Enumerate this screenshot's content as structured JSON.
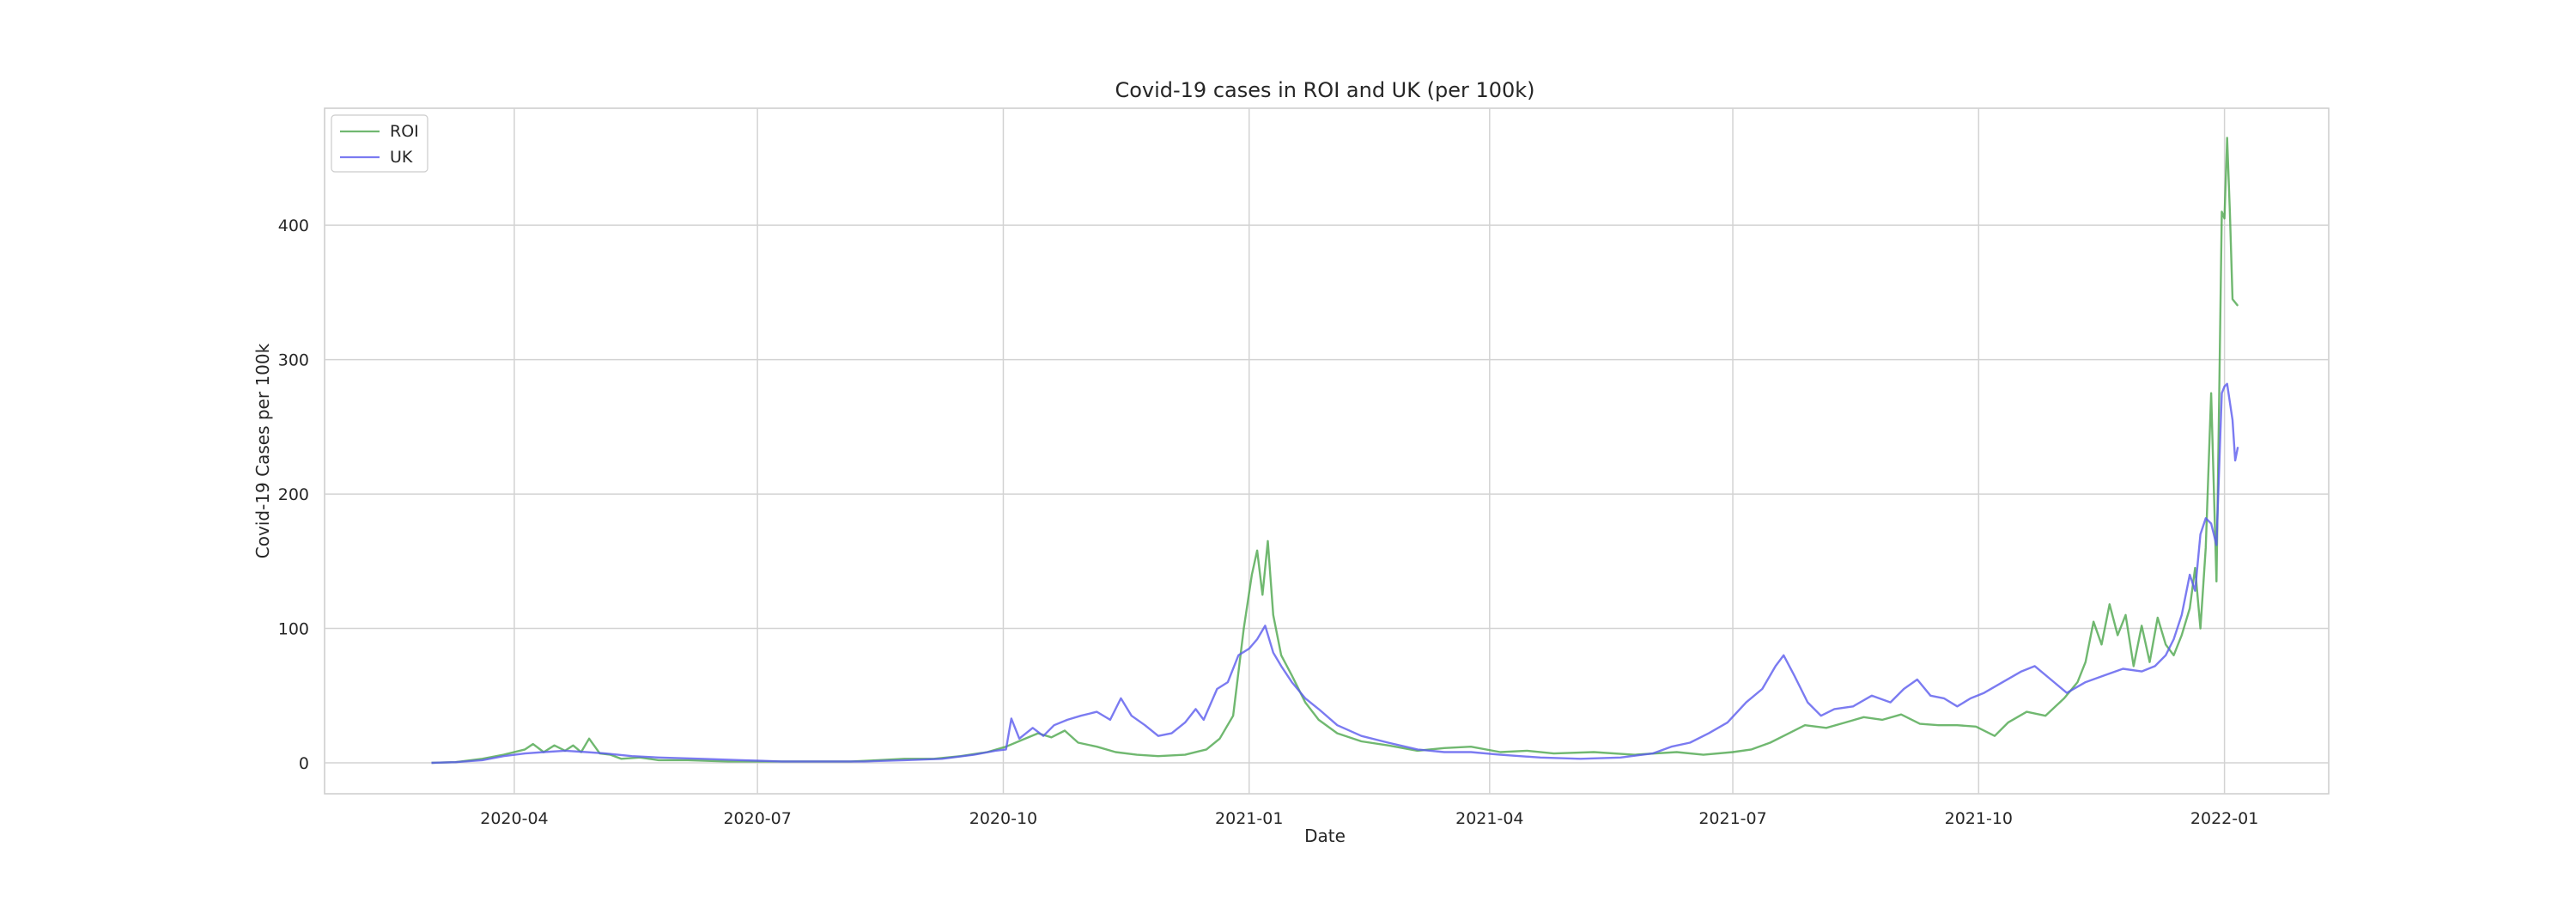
{
  "chart_data": {
    "type": "line",
    "title": "Covid-19 cases in ROI and UK (per 100k)",
    "xlabel": "Date",
    "ylabel": "Covid-19 Cases per 100k",
    "xlim": [
      "2020-01-21",
      "2022-02-09"
    ],
    "ylim": [
      -23,
      487
    ],
    "x_ticks": [
      "2020-04",
      "2020-07",
      "2020-10",
      "2021-01",
      "2021-04",
      "2021-07",
      "2021-10",
      "2022-01"
    ],
    "y_ticks": [
      0,
      100,
      200,
      300,
      400
    ],
    "grid": true,
    "legend_position": "top-left",
    "series": [
      {
        "name": "ROI",
        "color": "#4ca64c",
        "points": [
          [
            "2020-03-01",
            0
          ],
          [
            "2020-03-10",
            0.5
          ],
          [
            "2020-03-20",
            3
          ],
          [
            "2020-03-28",
            6
          ],
          [
            "2020-04-05",
            10
          ],
          [
            "2020-04-08",
            14
          ],
          [
            "2020-04-12",
            8
          ],
          [
            "2020-04-16",
            13
          ],
          [
            "2020-04-20",
            9
          ],
          [
            "2020-04-23",
            13
          ],
          [
            "2020-04-26",
            8
          ],
          [
            "2020-04-29",
            18
          ],
          [
            "2020-05-03",
            7
          ],
          [
            "2020-05-07",
            6
          ],
          [
            "2020-05-11",
            3
          ],
          [
            "2020-05-18",
            4
          ],
          [
            "2020-05-25",
            2
          ],
          [
            "2020-06-05",
            2
          ],
          [
            "2020-06-20",
            1
          ],
          [
            "2020-07-05",
            1
          ],
          [
            "2020-07-20",
            1
          ],
          [
            "2020-08-05",
            1
          ],
          [
            "2020-08-15",
            2
          ],
          [
            "2020-08-25",
            3
          ],
          [
            "2020-09-05",
            3
          ],
          [
            "2020-09-15",
            5
          ],
          [
            "2020-09-25",
            8
          ],
          [
            "2020-10-02",
            12
          ],
          [
            "2020-10-08",
            17
          ],
          [
            "2020-10-14",
            22
          ],
          [
            "2020-10-19",
            19
          ],
          [
            "2020-10-24",
            24
          ],
          [
            "2020-10-29",
            15
          ],
          [
            "2020-11-05",
            12
          ],
          [
            "2020-11-12",
            8
          ],
          [
            "2020-11-20",
            6
          ],
          [
            "2020-11-28",
            5
          ],
          [
            "2020-12-08",
            6
          ],
          [
            "2020-12-16",
            10
          ],
          [
            "2020-12-21",
            18
          ],
          [
            "2020-12-26",
            35
          ],
          [
            "2020-12-30",
            100
          ],
          [
            "2021-01-02",
            140
          ],
          [
            "2021-01-04",
            158
          ],
          [
            "2021-01-06",
            125
          ],
          [
            "2021-01-08",
            165
          ],
          [
            "2021-01-10",
            110
          ],
          [
            "2021-01-13",
            80
          ],
          [
            "2021-01-17",
            65
          ],
          [
            "2021-01-22",
            45
          ],
          [
            "2021-01-27",
            32
          ],
          [
            "2021-02-03",
            22
          ],
          [
            "2021-02-12",
            16
          ],
          [
            "2021-02-22",
            13
          ],
          [
            "2021-03-05",
            9
          ],
          [
            "2021-03-15",
            11
          ],
          [
            "2021-03-25",
            12
          ],
          [
            "2021-04-05",
            8
          ],
          [
            "2021-04-15",
            9
          ],
          [
            "2021-04-25",
            7
          ],
          [
            "2021-05-10",
            8
          ],
          [
            "2021-05-25",
            6
          ],
          [
            "2021-06-10",
            8
          ],
          [
            "2021-06-20",
            6
          ],
          [
            "2021-07-01",
            8
          ],
          [
            "2021-07-08",
            10
          ],
          [
            "2021-07-15",
            15
          ],
          [
            "2021-07-22",
            22
          ],
          [
            "2021-07-28",
            28
          ],
          [
            "2021-08-05",
            26
          ],
          [
            "2021-08-12",
            30
          ],
          [
            "2021-08-19",
            34
          ],
          [
            "2021-08-26",
            32
          ],
          [
            "2021-09-02",
            36
          ],
          [
            "2021-09-09",
            29
          ],
          [
            "2021-09-16",
            28
          ],
          [
            "2021-09-23",
            28
          ],
          [
            "2021-09-30",
            27
          ],
          [
            "2021-10-07",
            20
          ],
          [
            "2021-10-12",
            30
          ],
          [
            "2021-10-19",
            38
          ],
          [
            "2021-10-26",
            35
          ],
          [
            "2021-11-02",
            48
          ],
          [
            "2021-11-07",
            60
          ],
          [
            "2021-11-10",
            75
          ],
          [
            "2021-11-13",
            105
          ],
          [
            "2021-11-16",
            88
          ],
          [
            "2021-11-19",
            118
          ],
          [
            "2021-11-22",
            95
          ],
          [
            "2021-11-25",
            110
          ],
          [
            "2021-11-28",
            72
          ],
          [
            "2021-12-01",
            102
          ],
          [
            "2021-12-04",
            75
          ],
          [
            "2021-12-07",
            108
          ],
          [
            "2021-12-10",
            88
          ],
          [
            "2021-12-13",
            80
          ],
          [
            "2021-12-16",
            95
          ],
          [
            "2021-12-19",
            115
          ],
          [
            "2021-12-21",
            145
          ],
          [
            "2021-12-23",
            100
          ],
          [
            "2021-12-25",
            160
          ],
          [
            "2021-12-27",
            275
          ],
          [
            "2021-12-29",
            135
          ],
          [
            "2021-12-30",
            270
          ],
          [
            "2021-12-31",
            410
          ],
          [
            "2022-01-01",
            405
          ],
          [
            "2022-01-02",
            465
          ],
          [
            "2022-01-03",
            410
          ],
          [
            "2022-01-04",
            345
          ],
          [
            "2022-01-06",
            340
          ]
        ]
      },
      {
        "name": "UK",
        "color": "#5a5aee",
        "points": [
          [
            "2020-03-01",
            0
          ],
          [
            "2020-03-10",
            0.5
          ],
          [
            "2020-03-20",
            2
          ],
          [
            "2020-03-28",
            5
          ],
          [
            "2020-04-05",
            7
          ],
          [
            "2020-04-12",
            8
          ],
          [
            "2020-04-20",
            9
          ],
          [
            "2020-04-28",
            8
          ],
          [
            "2020-05-05",
            7
          ],
          [
            "2020-05-15",
            5
          ],
          [
            "2020-05-25",
            4
          ],
          [
            "2020-06-10",
            3
          ],
          [
            "2020-06-25",
            2
          ],
          [
            "2020-07-10",
            1
          ],
          [
            "2020-07-25",
            1
          ],
          [
            "2020-08-10",
            1
          ],
          [
            "2020-08-25",
            2
          ],
          [
            "2020-09-08",
            3
          ],
          [
            "2020-09-20",
            6
          ],
          [
            "2020-09-28",
            9
          ],
          [
            "2020-10-02",
            10
          ],
          [
            "2020-10-04",
            33
          ],
          [
            "2020-10-07",
            18
          ],
          [
            "2020-10-12",
            26
          ],
          [
            "2020-10-16",
            20
          ],
          [
            "2020-10-20",
            28
          ],
          [
            "2020-10-25",
            32
          ],
          [
            "2020-10-30",
            35
          ],
          [
            "2020-11-05",
            38
          ],
          [
            "2020-11-10",
            32
          ],
          [
            "2020-11-14",
            48
          ],
          [
            "2020-11-18",
            35
          ],
          [
            "2020-11-23",
            28
          ],
          [
            "2020-11-28",
            20
          ],
          [
            "2020-12-03",
            22
          ],
          [
            "2020-12-08",
            30
          ],
          [
            "2020-12-12",
            40
          ],
          [
            "2020-12-15",
            32
          ],
          [
            "2020-12-20",
            55
          ],
          [
            "2020-12-24",
            60
          ],
          [
            "2020-12-28",
            80
          ],
          [
            "2021-01-01",
            85
          ],
          [
            "2021-01-04",
            92
          ],
          [
            "2021-01-07",
            102
          ],
          [
            "2021-01-10",
            82
          ],
          [
            "2021-01-13",
            72
          ],
          [
            "2021-01-17",
            60
          ],
          [
            "2021-01-22",
            48
          ],
          [
            "2021-01-27",
            40
          ],
          [
            "2021-02-03",
            28
          ],
          [
            "2021-02-12",
            20
          ],
          [
            "2021-02-22",
            15
          ],
          [
            "2021-03-05",
            10
          ],
          [
            "2021-03-15",
            8
          ],
          [
            "2021-03-25",
            8
          ],
          [
            "2021-04-05",
            6
          ],
          [
            "2021-04-20",
            4
          ],
          [
            "2021-05-05",
            3
          ],
          [
            "2021-05-20",
            4
          ],
          [
            "2021-06-01",
            7
          ],
          [
            "2021-06-08",
            12
          ],
          [
            "2021-06-15",
            15
          ],
          [
            "2021-06-22",
            22
          ],
          [
            "2021-06-29",
            30
          ],
          [
            "2021-07-06",
            45
          ],
          [
            "2021-07-12",
            55
          ],
          [
            "2021-07-17",
            72
          ],
          [
            "2021-07-20",
            80
          ],
          [
            "2021-07-24",
            65
          ],
          [
            "2021-07-29",
            45
          ],
          [
            "2021-08-03",
            35
          ],
          [
            "2021-08-08",
            40
          ],
          [
            "2021-08-15",
            42
          ],
          [
            "2021-08-22",
            50
          ],
          [
            "2021-08-29",
            45
          ],
          [
            "2021-09-03",
            55
          ],
          [
            "2021-09-08",
            62
          ],
          [
            "2021-09-13",
            50
          ],
          [
            "2021-09-18",
            48
          ],
          [
            "2021-09-23",
            42
          ],
          [
            "2021-09-28",
            48
          ],
          [
            "2021-10-03",
            52
          ],
          [
            "2021-10-10",
            60
          ],
          [
            "2021-10-17",
            68
          ],
          [
            "2021-10-22",
            72
          ],
          [
            "2021-10-28",
            62
          ],
          [
            "2021-11-03",
            52
          ],
          [
            "2021-11-10",
            60
          ],
          [
            "2021-11-17",
            65
          ],
          [
            "2021-11-24",
            70
          ],
          [
            "2021-12-01",
            68
          ],
          [
            "2021-12-06",
            72
          ],
          [
            "2021-12-10",
            80
          ],
          [
            "2021-12-13",
            92
          ],
          [
            "2021-12-16",
            110
          ],
          [
            "2021-12-19",
            140
          ],
          [
            "2021-12-21",
            128
          ],
          [
            "2021-12-23",
            170
          ],
          [
            "2021-12-25",
            182
          ],
          [
            "2021-12-27",
            178
          ],
          [
            "2021-12-29",
            162
          ],
          [
            "2021-12-31",
            275
          ],
          [
            "2022-01-01",
            280
          ],
          [
            "2022-01-02",
            282
          ],
          [
            "2022-01-04",
            255
          ],
          [
            "2022-01-05",
            225
          ],
          [
            "2022-01-06",
            235
          ]
        ]
      }
    ]
  }
}
